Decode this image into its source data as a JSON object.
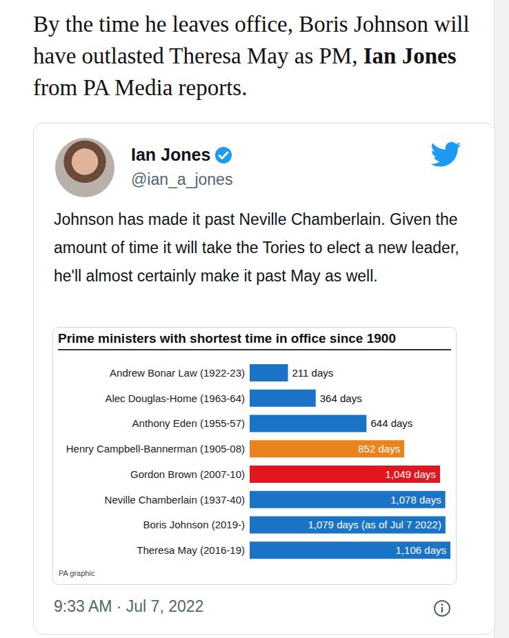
{
  "intro": {
    "text_before": "By the time he leaves office, Boris Johnson will have outlasted Theresa May as PM,",
    "bold": "Ian Jones",
    "text_after": "from PA Media reports."
  },
  "tweet": {
    "name": "Ian Jones",
    "handle": "@ian_a_jones",
    "text": "Johnson has made it past Neville Chamberlain. Given the amount of time it will take the Tories to elect a new leader, he'll almost certainly make it past May as well.",
    "timestamp": "9:33 AM · Jul 7, 2022"
  },
  "chart_data": {
    "type": "bar",
    "orientation": "horizontal",
    "title": "Prime ministers with shortest time in office since 1900",
    "annotations": [
      "PA graphic"
    ],
    "categories": [
      "Andrew Bonar Law (1922-23)",
      "Alec Douglas-Home (1963-64)",
      "Anthony Eden (1955-57)",
      "Henry Campbell-Bannerman (1905-08)",
      "Gordon Brown (2007-10)",
      "Neville Chamberlain (1937-40)",
      "Boris Johnson (2019-)",
      "Theresa May (2016-19)"
    ],
    "values": [
      211,
      364,
      644,
      852,
      1049,
      1078,
      1079,
      1106
    ],
    "value_labels": [
      "211 days",
      "364 days",
      "644 days",
      "852 days",
      "1,049 days",
      "1,078 days",
      "1,079 days (as of Jul 7 2022)",
      "1,106 days"
    ],
    "colors": [
      "#1a73c4",
      "#1a73c4",
      "#1a73c4",
      "#e8831e",
      "#e2161f",
      "#1a73c4",
      "#1a73c4",
      "#1a73c4"
    ],
    "xlim": [
      0,
      1106
    ],
    "data_labels": true,
    "tick_labels": "y",
    "grid": false
  }
}
